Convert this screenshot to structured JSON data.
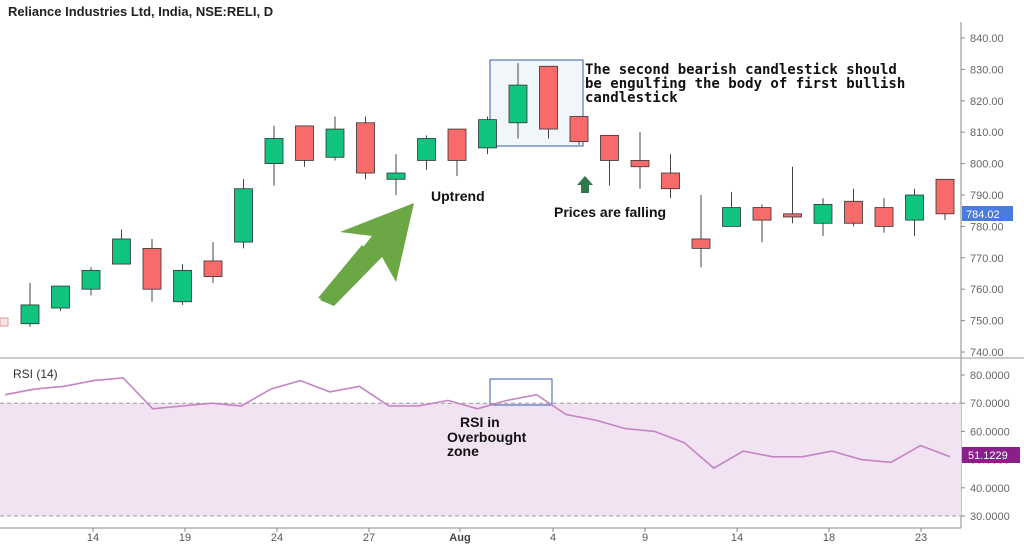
{
  "header": {
    "title": "Reliance Industries Ltd, India, NSE:RELI, D"
  },
  "chart_data": {
    "type": "candlestick",
    "title": "Reliance Industries Ltd, India, NSE:RELI, D",
    "price_axis": {
      "ylim": [
        740,
        840
      ],
      "ticks": [
        "840.00",
        "830.00",
        "820.00",
        "810.00",
        "800.00",
        "790.00",
        "780.00",
        "770.00",
        "760.00",
        "750.00",
        "740.00"
      ]
    },
    "last_price_label": "784.02",
    "x_labels": [
      "14",
      "19",
      "24",
      "27",
      "Aug",
      "4",
      "9",
      "14",
      "18",
      "23"
    ],
    "candles": [
      {
        "o": 749,
        "h": 762,
        "l": 748,
        "c": 755
      },
      {
        "o": 754,
        "h": 761,
        "l": 753,
        "c": 761
      },
      {
        "o": 760,
        "h": 767,
        "l": 758,
        "c": 766
      },
      {
        "o": 768,
        "h": 779,
        "l": 768,
        "c": 776
      },
      {
        "o": 773,
        "h": 776,
        "l": 756,
        "c": 760
      },
      {
        "o": 756,
        "h": 768,
        "l": 755,
        "c": 766
      },
      {
        "o": 769,
        "h": 775,
        "l": 762,
        "c": 764
      },
      {
        "o": 775,
        "h": 795,
        "l": 773,
        "c": 792
      },
      {
        "o": 800,
        "h": 812,
        "l": 793,
        "c": 808
      },
      {
        "o": 812,
        "h": 812,
        "l": 799,
        "c": 801
      },
      {
        "o": 802,
        "h": 815,
        "l": 801,
        "c": 811
      },
      {
        "o": 813,
        "h": 815,
        "l": 795,
        "c": 797
      },
      {
        "o": 795,
        "h": 803,
        "l": 790,
        "c": 797
      },
      {
        "o": 801,
        "h": 809,
        "l": 798,
        "c": 808
      },
      {
        "o": 811,
        "h": 811,
        "l": 796,
        "c": 801
      },
      {
        "o": 805,
        "h": 815,
        "l": 803,
        "c": 814
      },
      {
        "o": 813,
        "h": 832,
        "l": 808,
        "c": 825
      },
      {
        "o": 831,
        "h": 831,
        "l": 808,
        "c": 811
      },
      {
        "o": 815,
        "h": 815,
        "l": 806,
        "c": 807
      },
      {
        "o": 809,
        "h": 809,
        "l": 793,
        "c": 801
      },
      {
        "o": 801,
        "h": 810,
        "l": 792,
        "c": 799
      },
      {
        "o": 797,
        "h": 803,
        "l": 789,
        "c": 792
      },
      {
        "o": 776,
        "h": 790,
        "l": 767,
        "c": 773
      },
      {
        "o": 780,
        "h": 791,
        "l": 780,
        "c": 786
      },
      {
        "o": 786,
        "h": 787,
        "l": 775,
        "c": 782
      },
      {
        "o": 784,
        "h": 799,
        "l": 781,
        "c": 783
      },
      {
        "o": 781,
        "h": 789,
        "l": 777,
        "c": 787
      },
      {
        "o": 788,
        "h": 792,
        "l": 780,
        "c": 781
      },
      {
        "o": 786,
        "h": 789,
        "l": 778,
        "c": 780
      },
      {
        "o": 782,
        "h": 792,
        "l": 777,
        "c": 790
      },
      {
        "o": 795,
        "h": 795,
        "l": 782,
        "c": 784
      }
    ],
    "rsi": {
      "label": "RSI (14)",
      "ylim": [
        30,
        80
      ],
      "ticks": [
        "80.0000",
        "70.0000",
        "60.0000",
        "50.0000",
        "40.0000",
        "30.0000"
      ],
      "last_value_label": "51.1229",
      "overbought": 70,
      "oversold": 30,
      "values": [
        73,
        75,
        76,
        78,
        79,
        68,
        69,
        70,
        69,
        75,
        78,
        74,
        76,
        69,
        69,
        71,
        68,
        71,
        73,
        66,
        64,
        61,
        60,
        56,
        47,
        53,
        51,
        51,
        53,
        50,
        49,
        55,
        51
      ]
    }
  },
  "annotations": {
    "engulfing_line1": "The second bearish candlestick should",
    "engulfing_line2": "be engulfing the body of first bullish",
    "engulfing_line3": "candlestick",
    "uptrend": "Uptrend",
    "falling": "Prices are falling",
    "rsi_line1": "RSI in",
    "rsi_line2": "Overbought",
    "rsi_line3": "zone"
  },
  "colors": {
    "bull": "#10c47f",
    "bear": "#f96b6b",
    "rsi_line": "#c484c2",
    "rsi_band": "#f2e3f3",
    "price_tag": "#4a7cdb",
    "rsi_tag": "#8a1f8a",
    "arrow_green": "#6ba745",
    "arrow_dark": "#2e7a4a"
  }
}
